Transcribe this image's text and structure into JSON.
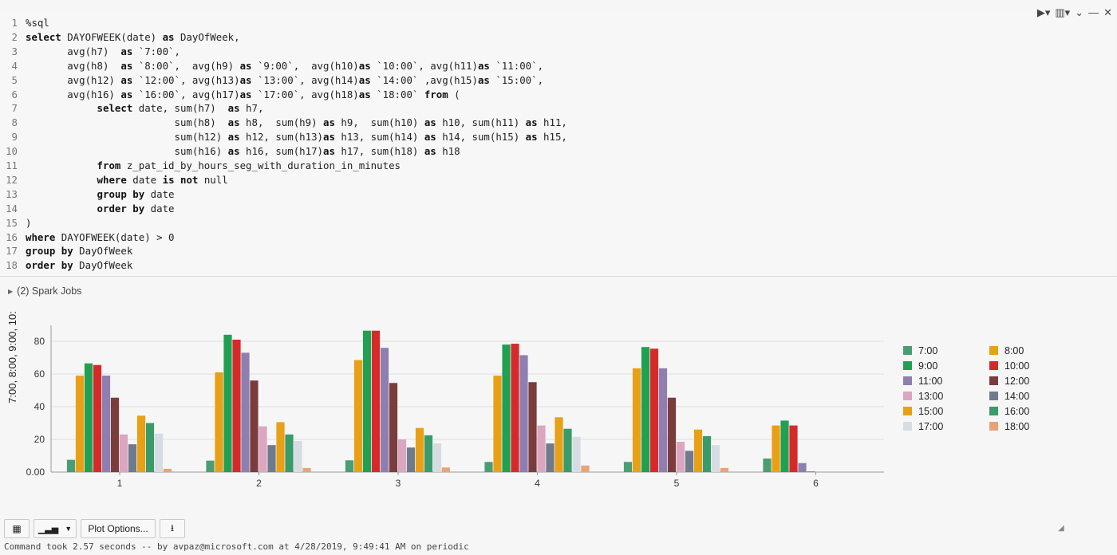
{
  "code_lines": [
    [
      {
        "t": "%sql",
        "k": false
      }
    ],
    [
      {
        "t": "select",
        "k": true
      },
      {
        "t": " DAYOFWEEK(date) ",
        "k": false
      },
      {
        "t": "as",
        "k": true
      },
      {
        "t": " DayOfWeek,",
        "k": false
      }
    ],
    [
      {
        "t": "       avg(h7)  ",
        "k": false
      },
      {
        "t": "as",
        "k": true
      },
      {
        "t": " `7:00`,",
        "k": false
      }
    ],
    [
      {
        "t": "       avg(h8)  ",
        "k": false
      },
      {
        "t": "as",
        "k": true
      },
      {
        "t": " `8:00`,  avg(h9) ",
        "k": false
      },
      {
        "t": "as",
        "k": true
      },
      {
        "t": " `9:00`,  avg(h10)",
        "k": false
      },
      {
        "t": "as",
        "k": true
      },
      {
        "t": " `10:00`, avg(h11)",
        "k": false
      },
      {
        "t": "as",
        "k": true
      },
      {
        "t": " `11:00`,",
        "k": false
      }
    ],
    [
      {
        "t": "       avg(h12) ",
        "k": false
      },
      {
        "t": "as",
        "k": true
      },
      {
        "t": " `12:00`, avg(h13)",
        "k": false
      },
      {
        "t": "as",
        "k": true
      },
      {
        "t": " `13:00`, avg(h14)",
        "k": false
      },
      {
        "t": "as",
        "k": true
      },
      {
        "t": " `14:00` ,avg(h15)",
        "k": false
      },
      {
        "t": "as",
        "k": true
      },
      {
        "t": " `15:00`,",
        "k": false
      }
    ],
    [
      {
        "t": "       avg(h16) ",
        "k": false
      },
      {
        "t": "as",
        "k": true
      },
      {
        "t": " `16:00`, avg(h17)",
        "k": false
      },
      {
        "t": "as",
        "k": true
      },
      {
        "t": " `17:00`, avg(h18)",
        "k": false
      },
      {
        "t": "as",
        "k": true
      },
      {
        "t": " `18:00` ",
        "k": false
      },
      {
        "t": "from",
        "k": true
      },
      {
        "t": " (",
        "k": false
      }
    ],
    [
      {
        "t": "            ",
        "k": false
      },
      {
        "t": "select",
        "k": true
      },
      {
        "t": " date, sum(h7)  ",
        "k": false
      },
      {
        "t": "as",
        "k": true
      },
      {
        "t": " h7,",
        "k": false
      }
    ],
    [
      {
        "t": "                         sum(h8)  ",
        "k": false
      },
      {
        "t": "as",
        "k": true
      },
      {
        "t": " h8,  sum(h9) ",
        "k": false
      },
      {
        "t": "as",
        "k": true
      },
      {
        "t": " h9,  sum(h10) ",
        "k": false
      },
      {
        "t": "as",
        "k": true
      },
      {
        "t": " h10, sum(h11) ",
        "k": false
      },
      {
        "t": "as",
        "k": true
      },
      {
        "t": " h11,",
        "k": false
      }
    ],
    [
      {
        "t": "                         sum(h12) ",
        "k": false
      },
      {
        "t": "as",
        "k": true
      },
      {
        "t": " h12, sum(h13)",
        "k": false
      },
      {
        "t": "as",
        "k": true
      },
      {
        "t": " h13, sum(h14) ",
        "k": false
      },
      {
        "t": "as",
        "k": true
      },
      {
        "t": " h14, sum(h15) ",
        "k": false
      },
      {
        "t": "as",
        "k": true
      },
      {
        "t": " h15,",
        "k": false
      }
    ],
    [
      {
        "t": "                         sum(h16) ",
        "k": false
      },
      {
        "t": "as",
        "k": true
      },
      {
        "t": " h16, sum(h17)",
        "k": false
      },
      {
        "t": "as",
        "k": true
      },
      {
        "t": " h17, sum(h18) ",
        "k": false
      },
      {
        "t": "as",
        "k": true
      },
      {
        "t": " h18",
        "k": false
      }
    ],
    [
      {
        "t": "            ",
        "k": false
      },
      {
        "t": "from",
        "k": true
      },
      {
        "t": " z_pat_id_by_hours_seg_with_duration_in_minutes",
        "k": false
      }
    ],
    [
      {
        "t": "            ",
        "k": false
      },
      {
        "t": "where",
        "k": true
      },
      {
        "t": " date ",
        "k": false
      },
      {
        "t": "is not",
        "k": true
      },
      {
        "t": " null",
        "k": false
      }
    ],
    [
      {
        "t": "            ",
        "k": false
      },
      {
        "t": "group by",
        "k": true
      },
      {
        "t": " date",
        "k": false
      }
    ],
    [
      {
        "t": "            ",
        "k": false
      },
      {
        "t": "order by",
        "k": true
      },
      {
        "t": " date",
        "k": false
      }
    ],
    [
      {
        "t": ")",
        "k": false
      }
    ],
    [
      {
        "t": "where",
        "k": true
      },
      {
        "t": " DAYOFWEEK(date) > 0",
        "k": false
      }
    ],
    [
      {
        "t": "group by",
        "k": true
      },
      {
        "t": " DayOfWeek",
        "k": false
      }
    ],
    [
      {
        "t": "order by",
        "k": true
      },
      {
        "t": " DayOfWeek",
        "k": false
      }
    ]
  ],
  "spark_jobs": "(2) Spark Jobs",
  "buttons": {
    "table_icon": "table-icon",
    "chart_icon": "bar-chart-icon",
    "plot_options": "Plot Options...",
    "download_icon": "download-icon"
  },
  "status": "Command took 2.57 seconds -- by avpaz@microsoft.com at 4/28/2019, 9:49:41 AM on periodic",
  "colors": {
    "accent": "#444444"
  },
  "chart_data": {
    "type": "bar",
    "categories": [
      "1",
      "2",
      "3",
      "4",
      "5",
      "6"
    ],
    "ylabel": "7:00, 8:00, 9:00, 10:",
    "ylim": [
      0,
      90
    ],
    "yticks": [
      "0.00",
      "20",
      "40",
      "60",
      "80"
    ],
    "grid": true,
    "legend_position": "right",
    "series": [
      {
        "name": "7:00",
        "color": "#4b9d72",
        "values": [
          7.5,
          7,
          7.2,
          6.2,
          6.2,
          8.3
        ]
      },
      {
        "name": "8:00",
        "color": "#e8a016",
        "values": [
          59,
          61,
          68.5,
          59,
          63.5,
          28.5
        ]
      },
      {
        "name": "9:00",
        "color": "#22a052",
        "values": [
          66.5,
          84,
          86.5,
          78,
          76.5,
          31.5
        ]
      },
      {
        "name": "10:00",
        "color": "#d62a2a",
        "values": [
          65.5,
          81,
          86.5,
          78.5,
          75.5,
          28.5
        ]
      },
      {
        "name": "11:00",
        "color": "#8e7fb0",
        "values": [
          59,
          73,
          76,
          71.5,
          63.5,
          5.5
        ]
      },
      {
        "name": "12:00",
        "color": "#7b3c3c",
        "values": [
          45.5,
          56,
          54.5,
          55,
          45.5,
          0.3
        ]
      },
      {
        "name": "13:00",
        "color": "#dba6bf",
        "values": [
          23,
          28,
          20,
          28.5,
          18.5,
          0
        ]
      },
      {
        "name": "14:00",
        "color": "#6f7a8c",
        "values": [
          17,
          16.5,
          15,
          17.5,
          13,
          0
        ]
      },
      {
        "name": "15:00",
        "color": "#e8a016",
        "values": [
          34.5,
          30.5,
          27,
          33.5,
          26,
          0
        ]
      },
      {
        "name": "16:00",
        "color": "#3a9a6a",
        "values": [
          30,
          23,
          22.5,
          26.5,
          22,
          0
        ]
      },
      {
        "name": "17:00",
        "color": "#d6dce2",
        "values": [
          23.5,
          19,
          17.5,
          21.5,
          16.5,
          0
        ]
      },
      {
        "name": "18:00",
        "color": "#e6a478",
        "values": [
          2,
          2.5,
          2.8,
          4,
          2.5,
          0
        ]
      }
    ]
  }
}
